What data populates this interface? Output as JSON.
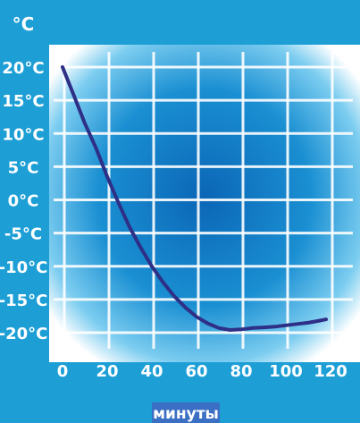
{
  "chart_data": {
    "type": "line",
    "x": [
      0,
      5,
      10,
      15,
      20,
      25,
      30,
      35,
      40,
      45,
      50,
      55,
      60,
      65,
      70,
      75,
      80,
      85,
      90,
      95,
      100,
      105,
      110,
      115,
      118
    ],
    "series": [
      {
        "values": [
          20,
          15.8,
          11.5,
          7.8,
          3.5,
          -0.4,
          -4.1,
          -7.2,
          -10,
          -12.4,
          -14.5,
          -16.2,
          -17.6,
          -18.6,
          -19.3,
          -19.6,
          -19.5,
          -19.3,
          -19.2,
          -19.1,
          -18.9,
          -18.7,
          -18.5,
          -18.2,
          -18
        ]
      }
    ],
    "y_unit_label": "°C",
    "xlabel": "минуты",
    "x_ticks": [
      0,
      20,
      40,
      60,
      80,
      100,
      120
    ],
    "x_tick_labels": [
      "0",
      "20",
      "40",
      "60",
      "80",
      "100",
      "120"
    ],
    "y_ticks": [
      20,
      15,
      10,
      5,
      0,
      -5,
      -10,
      -15,
      -20
    ],
    "y_tick_labels": [
      "20°C",
      "15°C",
      "10°C",
      "5°C",
      "0°C",
      "-5°C",
      "-10°C",
      "-15°C",
      "-20°C"
    ],
    "xlim": [
      0,
      120
    ],
    "ylim": [
      -20,
      20
    ],
    "grid": true,
    "colors": {
      "background": "#1d9fd6",
      "plot_edge": "#ffffff",
      "plot_center": "#0d6fbe",
      "grid": "#ffffff",
      "line": "#2e2f86",
      "text": "#ffffff",
      "xlabel_box": "#3b6fc4"
    }
  }
}
